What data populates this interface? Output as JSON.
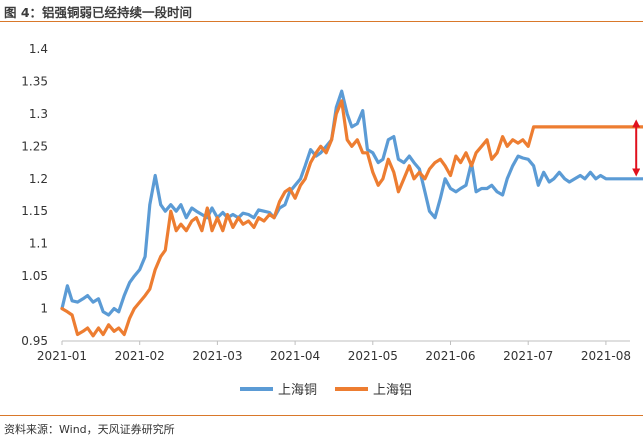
{
  "title": "图 4：铝强铜弱已经持续一段时间",
  "source": "资料来源：Wind，天风证券研究所",
  "colors": {
    "copper": "#5b9bd5",
    "aluminum": "#ed7d31",
    "arrow": "#e0101d",
    "accent_rule": "#d9782a"
  },
  "chart_data": {
    "type": "line",
    "title": "图 4：铝强铜弱已经持续一段时间",
    "xlabel": "",
    "ylabel": "",
    "ylim": [
      0.95,
      1.4
    ],
    "yticks": [
      "0.95",
      "1",
      "1.05",
      "1.1",
      "1.15",
      "1.2",
      "1.25",
      "1.3",
      "1.35",
      "1.4"
    ],
    "xticks": [
      "2021-01",
      "2021-02",
      "2021-03",
      "2021-04",
      "2021-05",
      "2021-06",
      "2021-07",
      "2021-08"
    ],
    "grid": false,
    "legend_position": "bottom-center",
    "x_unit": "months since 2021-01",
    "series": [
      {
        "name": "上海铜",
        "color": "#5b9bd5",
        "x": [
          0,
          0.07,
          0.13,
          0.2,
          0.27,
          0.33,
          0.4,
          0.47,
          0.53,
          0.6,
          0.67,
          0.73,
          0.8,
          0.87,
          0.93,
          1.0,
          1.07,
          1.13,
          1.2,
          1.27,
          1.33,
          1.4,
          1.47,
          1.53,
          1.6,
          1.67,
          1.73,
          1.8,
          1.87,
          1.93,
          2.0,
          2.07,
          2.13,
          2.2,
          2.27,
          2.33,
          2.4,
          2.47,
          2.53,
          2.6,
          2.67,
          2.73,
          2.8,
          2.87,
          2.93,
          3.0,
          3.07,
          3.13,
          3.2,
          3.27,
          3.33,
          3.4,
          3.47,
          3.53,
          3.6,
          3.67,
          3.73,
          3.8,
          3.87,
          3.93,
          4.0,
          4.07,
          4.13,
          4.2,
          4.27,
          4.33,
          4.4,
          4.47,
          4.53,
          4.6,
          4.67,
          4.73,
          4.8,
          4.87,
          4.93,
          5.0,
          5.07,
          5.13,
          5.2,
          5.27,
          5.33,
          5.4,
          5.47,
          5.53,
          5.6,
          5.67,
          5.73,
          5.8,
          5.87,
          5.93,
          6.0,
          6.07,
          6.13,
          6.2,
          6.27,
          6.33,
          6.4,
          6.47,
          6.53,
          6.6,
          6.67,
          6.73,
          6.8,
          6.87,
          6.93,
          7.0,
          7.07,
          7.13,
          7.2,
          7.27,
          7.33,
          7.4,
          7.47,
          7.53,
          7.6
        ],
        "values": [
          1.0,
          1.035,
          1.012,
          1.01,
          1.015,
          1.02,
          1.01,
          1.015,
          0.995,
          0.99,
          1.0,
          0.995,
          1.02,
          1.04,
          1.05,
          1.06,
          1.08,
          1.16,
          1.205,
          1.16,
          1.15,
          1.16,
          1.15,
          1.16,
          1.14,
          1.155,
          1.15,
          1.145,
          1.14,
          1.155,
          1.14,
          1.148,
          1.14,
          1.145,
          1.14,
          1.147,
          1.145,
          1.14,
          1.152,
          1.15,
          1.148,
          1.14,
          1.155,
          1.16,
          1.18,
          1.19,
          1.2,
          1.22,
          1.245,
          1.235,
          1.24,
          1.25,
          1.26,
          1.31,
          1.335,
          1.3,
          1.28,
          1.285,
          1.305,
          1.245,
          1.24,
          1.225,
          1.23,
          1.26,
          1.265,
          1.23,
          1.225,
          1.235,
          1.225,
          1.215,
          1.18,
          1.15,
          1.14,
          1.17,
          1.2,
          1.185,
          1.18,
          1.185,
          1.19,
          1.225,
          1.18,
          1.185,
          1.185,
          1.19,
          1.18,
          1.175,
          1.2,
          1.22,
          1.235,
          1.232,
          1.23,
          1.22,
          1.19,
          1.21,
          1.195,
          1.2,
          1.21,
          1.2,
          1.195,
          1.2,
          1.205,
          1.2,
          1.21,
          1.2,
          1.205,
          1.2,
          1.2,
          1.2,
          1.2,
          1.2,
          1.2,
          1.2,
          1.2,
          1.2,
          1.2
        ]
      },
      {
        "name": "上海铝",
        "color": "#ed7d31",
        "x": [
          0,
          0.07,
          0.13,
          0.2,
          0.27,
          0.33,
          0.4,
          0.47,
          0.53,
          0.6,
          0.67,
          0.73,
          0.8,
          0.87,
          0.93,
          1.0,
          1.07,
          1.13,
          1.2,
          1.27,
          1.33,
          1.4,
          1.47,
          1.53,
          1.6,
          1.67,
          1.73,
          1.8,
          1.87,
          1.93,
          2.0,
          2.07,
          2.13,
          2.2,
          2.27,
          2.33,
          2.4,
          2.47,
          2.53,
          2.6,
          2.67,
          2.73,
          2.8,
          2.87,
          2.93,
          3.0,
          3.07,
          3.13,
          3.2,
          3.27,
          3.33,
          3.4,
          3.47,
          3.53,
          3.6,
          3.67,
          3.73,
          3.8,
          3.87,
          3.93,
          4.0,
          4.07,
          4.13,
          4.2,
          4.27,
          4.33,
          4.4,
          4.47,
          4.53,
          4.6,
          4.67,
          4.73,
          4.8,
          4.87,
          4.93,
          5.0,
          5.07,
          5.13,
          5.2,
          5.27,
          5.33,
          5.4,
          5.47,
          5.53,
          5.6,
          5.67,
          5.73,
          5.8,
          5.87,
          5.93,
          6.0,
          6.07,
          6.13,
          6.2,
          6.27,
          6.33,
          6.4,
          6.47,
          6.53,
          6.6,
          6.67,
          6.73,
          6.8,
          6.87,
          6.93,
          7.0,
          7.07,
          7.13,
          7.2,
          7.27,
          7.33,
          7.4,
          7.47,
          7.53,
          7.6
        ],
        "values": [
          1.0,
          0.995,
          0.99,
          0.96,
          0.965,
          0.97,
          0.958,
          0.97,
          0.96,
          0.975,
          0.965,
          0.97,
          0.96,
          0.985,
          1.0,
          1.01,
          1.02,
          1.03,
          1.06,
          1.08,
          1.09,
          1.15,
          1.12,
          1.13,
          1.12,
          1.135,
          1.14,
          1.12,
          1.155,
          1.12,
          1.14,
          1.12,
          1.145,
          1.125,
          1.14,
          1.13,
          1.135,
          1.125,
          1.14,
          1.135,
          1.145,
          1.14,
          1.165,
          1.18,
          1.185,
          1.17,
          1.19,
          1.2,
          1.225,
          1.24,
          1.25,
          1.24,
          1.26,
          1.3,
          1.32,
          1.26,
          1.25,
          1.26,
          1.24,
          1.24,
          1.21,
          1.19,
          1.2,
          1.23,
          1.21,
          1.18,
          1.2,
          1.22,
          1.2,
          1.21,
          1.2,
          1.215,
          1.225,
          1.23,
          1.22,
          1.205,
          1.235,
          1.225,
          1.24,
          1.22,
          1.24,
          1.25,
          1.26,
          1.23,
          1.24,
          1.265,
          1.25,
          1.26,
          1.255,
          1.26,
          1.25,
          1.28,
          1.28,
          1.28,
          1.28,
          1.28,
          1.28,
          1.28,
          1.28,
          1.28,
          1.28,
          1.28,
          1.28,
          1.28,
          1.28,
          1.28,
          1.28,
          1.28,
          1.28,
          1.28,
          1.28,
          1.28,
          1.28,
          1.28,
          1.28
        ]
      }
    ],
    "annotations": [
      {
        "type": "double-arrow",
        "x": 7.39,
        "from": 1.205,
        "to": 1.29,
        "color": "#e0101d"
      }
    ]
  },
  "legend": [
    {
      "label": "上海铜",
      "color": "#5b9bd5"
    },
    {
      "label": "上海铝",
      "color": "#ed7d31"
    }
  ]
}
